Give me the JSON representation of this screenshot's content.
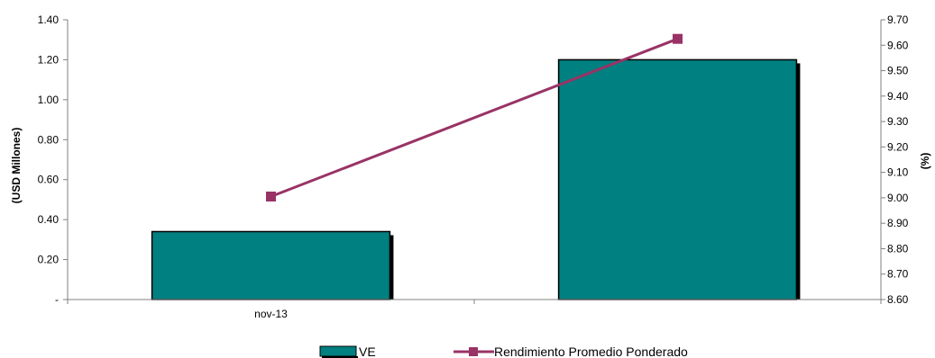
{
  "chart_data": {
    "type": "bar",
    "categories": [
      "nov-13",
      ""
    ],
    "series": [
      {
        "name": "VE",
        "type": "bar",
        "axis": "left",
        "values": [
          0.34,
          1.2
        ]
      },
      {
        "name": "Rendimiento Promedio Ponderado",
        "type": "line",
        "axis": "right",
        "values": [
          9.005,
          9.625
        ]
      }
    ],
    "ylabel": "(USD Millones)",
    "y2label": "(%)",
    "ylim": [
      0,
      1.4
    ],
    "y2lim": [
      8.6,
      9.7
    ],
    "yticks": [
      "-",
      "0.20",
      "0.40",
      "0.60",
      "0.80",
      "1.00",
      "1.20",
      "1.40"
    ],
    "y2ticks": [
      "8.60",
      "8.70",
      "8.80",
      "8.90",
      "9.00",
      "9.10",
      "9.20",
      "9.30",
      "9.40",
      "9.50",
      "9.60",
      "9.70"
    ],
    "grid": false,
    "legend_position": "bottom",
    "colors": {
      "bar": "#008080",
      "bar_shadow": "#000000",
      "line": "#993366"
    }
  }
}
